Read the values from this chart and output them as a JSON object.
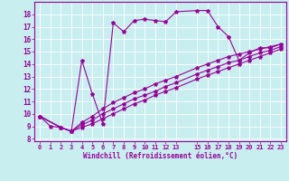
{
  "xlabel": "Windchill (Refroidissement éolien,°C)",
  "bg_color": "#c8eef0",
  "line_color": "#990099",
  "grid_color": "#ffffff",
  "xlim": [
    -0.5,
    23.5
  ],
  "ylim": [
    7.8,
    19.0
  ],
  "yticks": [
    8,
    9,
    10,
    11,
    12,
    13,
    14,
    15,
    16,
    17,
    18
  ],
  "xticks": [
    0,
    1,
    2,
    3,
    4,
    5,
    6,
    7,
    8,
    9,
    10,
    11,
    12,
    13,
    15,
    16,
    17,
    18,
    19,
    20,
    21,
    22,
    23
  ],
  "line1_x": [
    0,
    1,
    2,
    3,
    4,
    5,
    6,
    7,
    8,
    9,
    10,
    11,
    12,
    13,
    15,
    16,
    17,
    18,
    19,
    20,
    21,
    22,
    23
  ],
  "line1_y": [
    9.8,
    9.0,
    8.9,
    8.6,
    14.3,
    11.6,
    9.2,
    17.3,
    16.6,
    17.5,
    17.6,
    17.5,
    17.4,
    18.2,
    18.3,
    18.3,
    17.0,
    16.2,
    14.3,
    14.9,
    15.3,
    15.3,
    15.6
  ],
  "line2_x": [
    0,
    2,
    3,
    4,
    5,
    6,
    7,
    8,
    9,
    10,
    11,
    12,
    13,
    15,
    16,
    17,
    18,
    19,
    20,
    21,
    22,
    23
  ],
  "line2_y": [
    9.8,
    8.9,
    8.6,
    9.3,
    9.8,
    10.4,
    10.9,
    11.3,
    11.7,
    12.0,
    12.4,
    12.7,
    13.0,
    13.7,
    14.0,
    14.3,
    14.6,
    14.8,
    15.0,
    15.2,
    15.4,
    15.6
  ],
  "line3_x": [
    0,
    2,
    3,
    4,
    5,
    6,
    7,
    8,
    9,
    10,
    11,
    12,
    13,
    15,
    16,
    17,
    18,
    19,
    20,
    21,
    22,
    23
  ],
  "line3_y": [
    9.8,
    8.9,
    8.6,
    9.1,
    9.5,
    10.0,
    10.4,
    10.8,
    11.2,
    11.5,
    11.8,
    12.2,
    12.5,
    13.2,
    13.5,
    13.8,
    14.1,
    14.3,
    14.6,
    14.9,
    15.1,
    15.4
  ],
  "line4_x": [
    0,
    2,
    3,
    4,
    5,
    6,
    7,
    8,
    9,
    10,
    11,
    12,
    13,
    15,
    16,
    17,
    18,
    19,
    20,
    21,
    22,
    23
  ],
  "line4_y": [
    9.8,
    8.9,
    8.6,
    8.9,
    9.2,
    9.6,
    10.0,
    10.4,
    10.8,
    11.1,
    11.5,
    11.8,
    12.1,
    12.8,
    13.1,
    13.4,
    13.7,
    14.0,
    14.3,
    14.6,
    14.9,
    15.2
  ]
}
